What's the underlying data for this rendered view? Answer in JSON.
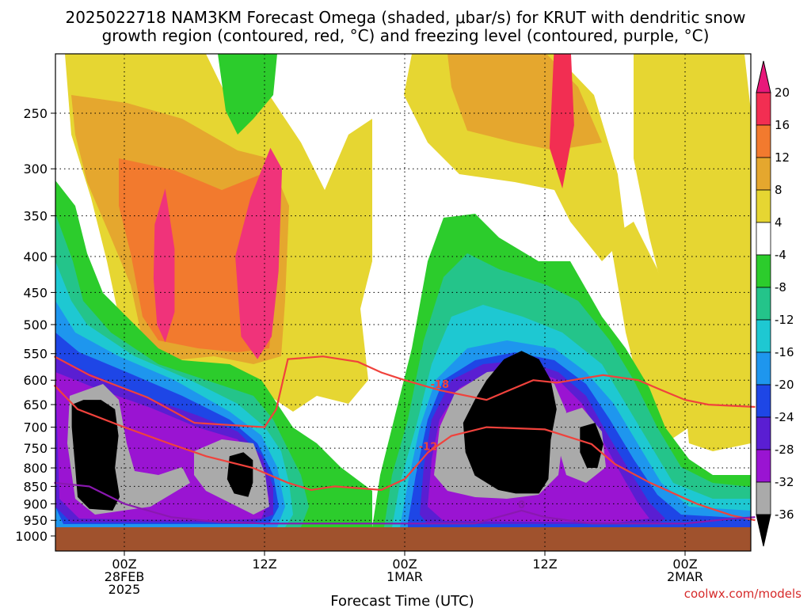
{
  "chart_data": {
    "type": "heatmap",
    "title_lines": [
      "2025022718 NAM3KM Forecast Omega (shaded, μbar/s) for KRUT with dendritic snow",
      "growth region (contoured, red, °C) and freezing level (contoured, purple, °C)"
    ],
    "xlabel": "Forecast Time (UTC)",
    "credit": "coolwx.com/models",
    "y_axis": {
      "ticks": [
        250,
        300,
        350,
        400,
        450,
        500,
        550,
        600,
        650,
        700,
        750,
        800,
        850,
        900,
        950,
        1000
      ],
      "range_hPa": [
        200,
        1000
      ],
      "grid": true
    },
    "x_axis": {
      "ticks": [
        {
          "hours": 6,
          "lines": [
            "00Z",
            "28FEB",
            "2025"
          ]
        },
        {
          "hours": 18,
          "lines": [
            "12Z"
          ]
        },
        {
          "hours": 30,
          "lines": [
            "00Z",
            "1MAR"
          ]
        },
        {
          "hours": 42,
          "lines": [
            "12Z"
          ]
        },
        {
          "hours": 54,
          "lines": [
            "00Z",
            "2MAR"
          ]
        }
      ],
      "range_hours": [
        0,
        60
      ],
      "grid": true
    },
    "colorbar": {
      "labels": [
        "20",
        "16",
        "12",
        "8",
        "4",
        "-4",
        "-8",
        "-12",
        "-16",
        "-20",
        "-24",
        "-28",
        "-32",
        "-36"
      ],
      "colors": [
        "#f22e52",
        "#f27a2e",
        "#e5a72e",
        "#e6d632",
        "#ffffff",
        "#2ccc2c",
        "#24c48a",
        "#1ec8d2",
        "#1e96ee",
        "#1e46e6",
        "#5a1ed2",
        "#9a14d2",
        "#aaaaaa",
        "#000000"
      ],
      "top_arrow_color": "#e8187a",
      "bottom_arrow_color": "#000000"
    },
    "shading_regions": [
      {
        "name": "updraft-black-1",
        "value": -40,
        "pts": [
          [
            1.5,
            650
          ],
          [
            2.5,
            640
          ],
          [
            4,
            640
          ],
          [
            5.2,
            660
          ],
          [
            5.5,
            720
          ],
          [
            5.2,
            800
          ],
          [
            5.6,
            880
          ],
          [
            5,
            920
          ],
          [
            3,
            915
          ],
          [
            2,
            880
          ],
          [
            1.8,
            800
          ],
          [
            1.5,
            700
          ]
        ]
      },
      {
        "name": "updraft-black-2",
        "value": -40,
        "pts": [
          [
            35,
            690
          ],
          [
            36,
            640
          ],
          [
            37,
            600
          ],
          [
            38.5,
            560
          ],
          [
            40,
            545
          ],
          [
            41.5,
            560
          ],
          [
            42.5,
            600
          ],
          [
            43,
            660
          ],
          [
            42.5,
            730
          ],
          [
            42.3,
            830
          ],
          [
            41.5,
            870
          ],
          [
            39.5,
            870
          ],
          [
            38,
            860
          ],
          [
            36,
            820
          ],
          [
            35.2,
            760
          ]
        ]
      },
      {
        "name": "updraft-black-3",
        "value": -40,
        "pts": [
          [
            15,
            770
          ],
          [
            16.2,
            760
          ],
          [
            17,
            780
          ],
          [
            17,
            840
          ],
          [
            16.6,
            880
          ],
          [
            15.4,
            870
          ],
          [
            14.8,
            830
          ]
        ]
      },
      {
        "name": "updraft-black-4",
        "value": -40,
        "pts": [
          [
            45,
            700
          ],
          [
            46.3,
            690
          ],
          [
            47,
            740
          ],
          [
            46.5,
            800
          ],
          [
            45.6,
            800
          ],
          [
            45,
            760
          ]
        ]
      },
      {
        "name": "omega-red-1",
        "value": 20,
        "pts": [
          [
            8.6,
            360
          ],
          [
            9.5,
            320
          ],
          [
            10.3,
            390
          ],
          [
            10.3,
            480
          ],
          [
            9.5,
            530
          ],
          [
            8.8,
            500
          ],
          [
            8.5,
            430
          ]
        ]
      },
      {
        "name": "omega-red-2",
        "value": 20,
        "pts": [
          [
            15.5,
            400
          ],
          [
            16.8,
            330
          ],
          [
            18.5,
            280
          ],
          [
            19.5,
            300
          ],
          [
            19.2,
            420
          ],
          [
            18.6,
            520
          ],
          [
            17.4,
            560
          ],
          [
            16,
            520
          ]
        ]
      },
      {
        "name": "omega-orange-1",
        "value": 16,
        "pts": [
          [
            42.8,
            200
          ],
          [
            44.2,
            200
          ],
          [
            44.5,
            260
          ],
          [
            43.5,
            320
          ],
          [
            42.4,
            280
          ]
        ]
      }
    ],
    "contours": [
      {
        "label": "-18",
        "color": "#f0423c",
        "points": [
          [
            0,
            555
          ],
          [
            3,
            590
          ],
          [
            8,
            635
          ],
          [
            12,
            690
          ],
          [
            18,
            700
          ],
          [
            19,
            660
          ],
          [
            20,
            560
          ],
          [
            23,
            555
          ],
          [
            26,
            565
          ],
          [
            28,
            585
          ],
          [
            30,
            600
          ],
          [
            33,
            620
          ],
          [
            37,
            640
          ],
          [
            41,
            600
          ],
          [
            43,
            605
          ],
          [
            47,
            590
          ],
          [
            50,
            600
          ],
          [
            52,
            620
          ],
          [
            54,
            640
          ],
          [
            56,
            650
          ],
          [
            60,
            655
          ]
        ]
      },
      {
        "label": "-12",
        "color": "#f0423c",
        "points": [
          [
            0,
            610
          ],
          [
            2,
            660
          ],
          [
            6,
            700
          ],
          [
            10,
            740
          ],
          [
            13,
            770
          ],
          [
            17,
            800
          ],
          [
            20,
            840
          ],
          [
            22,
            860
          ],
          [
            24,
            850
          ],
          [
            28,
            860
          ],
          [
            30,
            830
          ],
          [
            32,
            760
          ],
          [
            34,
            720
          ],
          [
            37,
            700
          ],
          [
            42,
            705
          ],
          [
            46,
            740
          ],
          [
            48,
            790
          ],
          [
            51,
            840
          ],
          [
            55,
            900
          ],
          [
            58,
            935
          ],
          [
            60,
            950
          ]
        ]
      },
      {
        "label": "0",
        "color": "#8a18b0",
        "points": [
          [
            0,
            840
          ],
          [
            3,
            850
          ],
          [
            6,
            900
          ],
          [
            10,
            940
          ],
          [
            14,
            955
          ],
          [
            18,
            960
          ],
          [
            36,
            960
          ],
          [
            40,
            920
          ],
          [
            42,
            940
          ],
          [
            46,
            960
          ],
          [
            54,
            960
          ],
          [
            58,
            945
          ],
          [
            60,
            940
          ]
        ]
      }
    ]
  }
}
